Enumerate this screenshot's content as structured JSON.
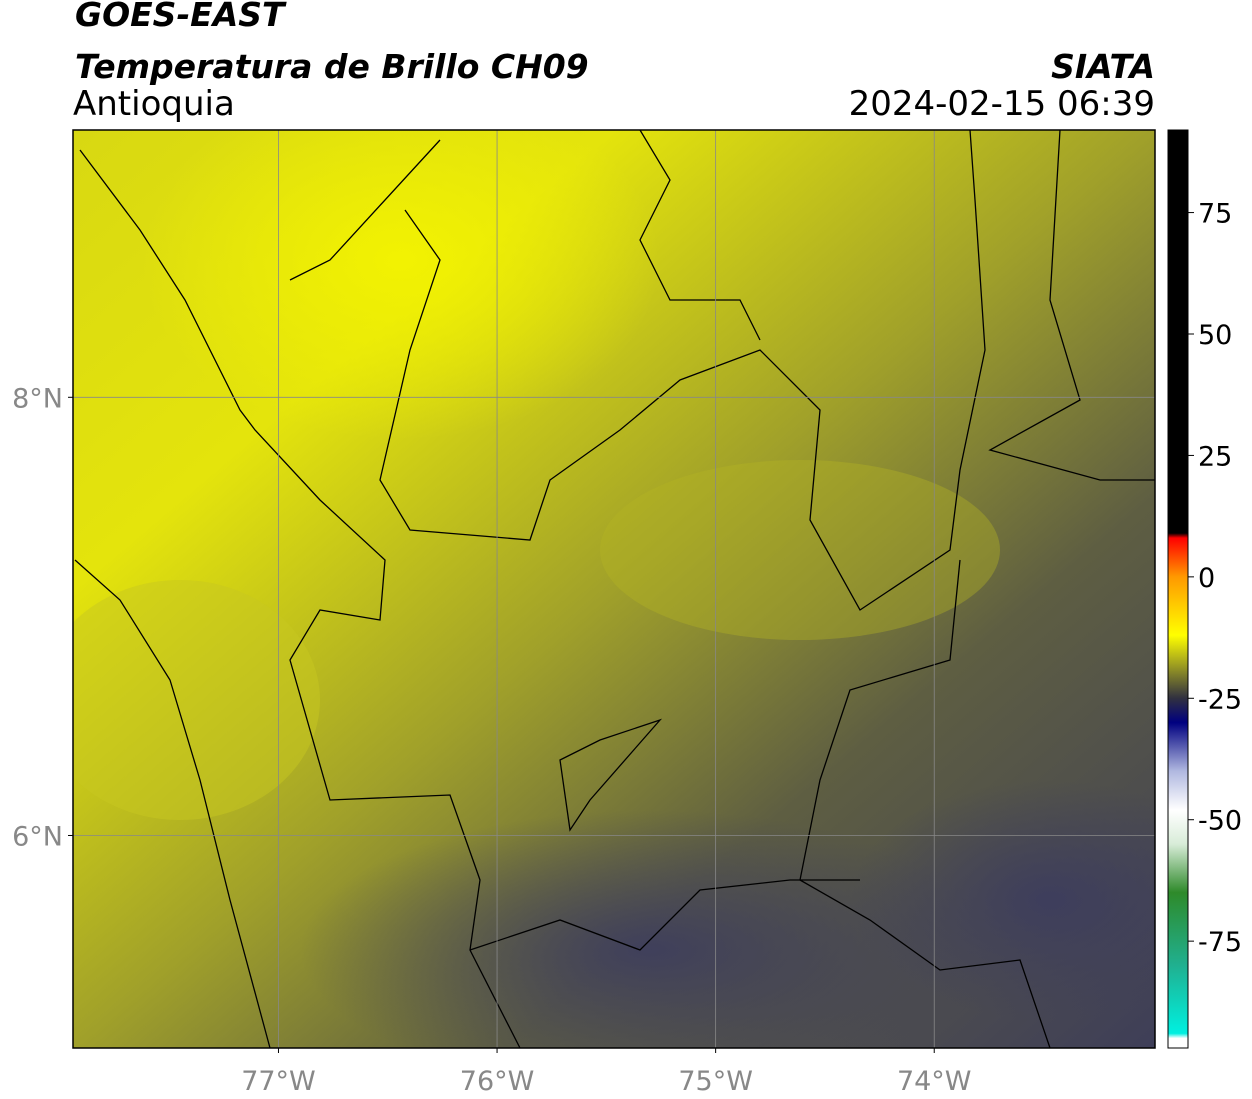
{
  "header": {
    "title": "GOES-EAST",
    "subtitle": "Temperatura de Brillo CH09",
    "region": "Antioquia",
    "source": "SIATA",
    "datetime": "2024-02-15 06:39"
  },
  "map": {
    "lonlim": [
      -77.94,
      -72.99
    ],
    "latlim": [
      5.03,
      9.22
    ],
    "lonticks": [
      {
        "value": -77,
        "label": "77°W"
      },
      {
        "value": -76,
        "label": "76°W"
      },
      {
        "value": -75,
        "label": "75°W"
      },
      {
        "value": -74,
        "label": "74°W"
      }
    ],
    "latticks": [
      {
        "value": 8,
        "label": "8°N"
      },
      {
        "value": 6,
        "label": "6°N"
      }
    ],
    "grid": true
  },
  "colorbar": {
    "range": [
      -97,
      92
    ],
    "ticks": [
      75,
      50,
      25,
      0,
      -25,
      -50,
      -75
    ],
    "stops": [
      {
        "value": -97,
        "color": "#ffffff"
      },
      {
        "value": -95,
        "color": "#ffffff"
      },
      {
        "value": -94,
        "color": "#00f0e0"
      },
      {
        "value": -80,
        "color": "#20b090"
      },
      {
        "value": -65,
        "color": "#2e8a2a"
      },
      {
        "value": -55,
        "color": "#d8ecd8"
      },
      {
        "value": -48,
        "color": "#ffffff"
      },
      {
        "value": -40,
        "color": "#b0b8e0"
      },
      {
        "value": -30,
        "color": "#000080"
      },
      {
        "value": -25,
        "color": "#303040"
      },
      {
        "value": -18,
        "color": "#a0a020"
      },
      {
        "value": -12,
        "color": "#ffff00"
      },
      {
        "value": 0,
        "color": "#ff9900"
      },
      {
        "value": 8,
        "color": "#ff0000"
      },
      {
        "value": 9,
        "color": "#000000"
      },
      {
        "value": 92,
        "color": "#000000"
      }
    ]
  }
}
